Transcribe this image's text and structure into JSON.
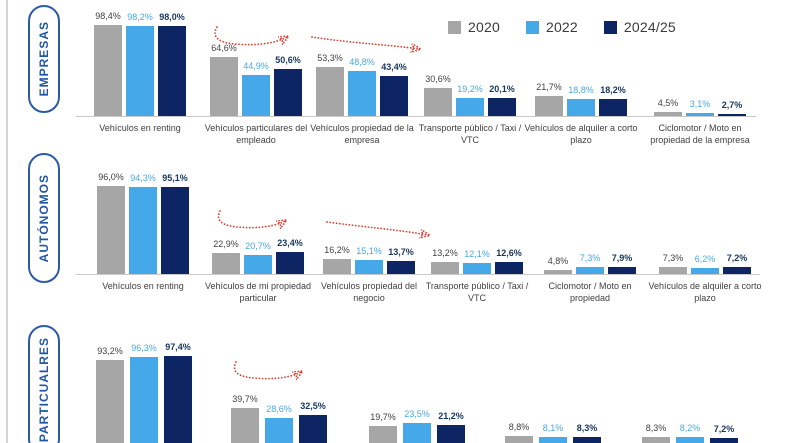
{
  "legend": {
    "items": [
      {
        "label": "2020",
        "color": "#a6a6a6"
      },
      {
        "label": "2022",
        "color": "#45a9e9"
      },
      {
        "label": "2024/25",
        "color": "#0d2563"
      }
    ]
  },
  "chart_data": [
    {
      "type": "bar",
      "title": "EMPRESAS",
      "categories": [
        "Vehículos en renting",
        "Vehículos particulares del empleado",
        "Vehículos propiedad de la empresa",
        "Transporte público / Taxi / VTC",
        "Vehículos de alquiler a corto plazo",
        "Ciclomotor / Moto en propiedad de la empresa"
      ],
      "series": [
        {
          "name": "2020",
          "values": [
            98.4,
            64.6,
            53.3,
            30.6,
            21.7,
            4.5
          ]
        },
        {
          "name": "2022",
          "values": [
            98.2,
            44.9,
            48.8,
            19.2,
            18.8,
            3.1
          ]
        },
        {
          "name": "2024/25",
          "values": [
            98.0,
            50.6,
            43.4,
            20.1,
            18.2,
            2.7
          ]
        }
      ],
      "value_label_suffix": "%",
      "ylim": [
        0,
        100
      ],
      "grid": false,
      "legend_position": "top-right",
      "annotations": [
        "trend-arrow dip-rise over category 2",
        "trend-arrow decline over category 3"
      ]
    },
    {
      "type": "bar",
      "title": "AUTÓNOMOS",
      "categories": [
        "Vehículos en renting",
        "Vehículos de mi propiedad particular",
        "Vehículos propiedad del negocio",
        "Transporte público / Taxi / VTC",
        "Ciclomotor / Moto en propiedad",
        "Vehículos de alquiler a corto plazo"
      ],
      "series": [
        {
          "name": "2020",
          "values": [
            96.0,
            22.9,
            16.2,
            13.2,
            4.8,
            7.3
          ]
        },
        {
          "name": "2022",
          "values": [
            94.3,
            20.7,
            15.1,
            12.1,
            7.3,
            6.2
          ]
        },
        {
          "name": "2024/25",
          "values": [
            95.1,
            23.4,
            13.7,
            12.6,
            7.9,
            7.2
          ]
        }
      ],
      "value_label_suffix": "%",
      "ylim": [
        0,
        100
      ],
      "grid": false,
      "annotations": [
        "trend-arrow dip-rise over category 2",
        "trend-arrow decline over category 3"
      ]
    },
    {
      "type": "bar",
      "title": "PARTICUALRES",
      "categories": [
        "",
        "",
        "",
        "",
        ""
      ],
      "series": [
        {
          "name": "2020",
          "values": [
            93.2,
            39.7,
            19.7,
            8.8,
            8.3
          ]
        },
        {
          "name": "2022",
          "values": [
            96.3,
            28.6,
            23.5,
            8.1,
            8.2
          ]
        },
        {
          "name": "2024/25",
          "values": [
            97.4,
            32.5,
            21.2,
            8.3,
            7.2
          ]
        }
      ],
      "value_label_suffix": "%",
      "ylim": [
        0,
        100
      ],
      "grid": false,
      "annotations": [
        "trend-arrow dip-rise over category 2",
        "bottom axis and labels clipped by screenshot edge"
      ]
    }
  ]
}
